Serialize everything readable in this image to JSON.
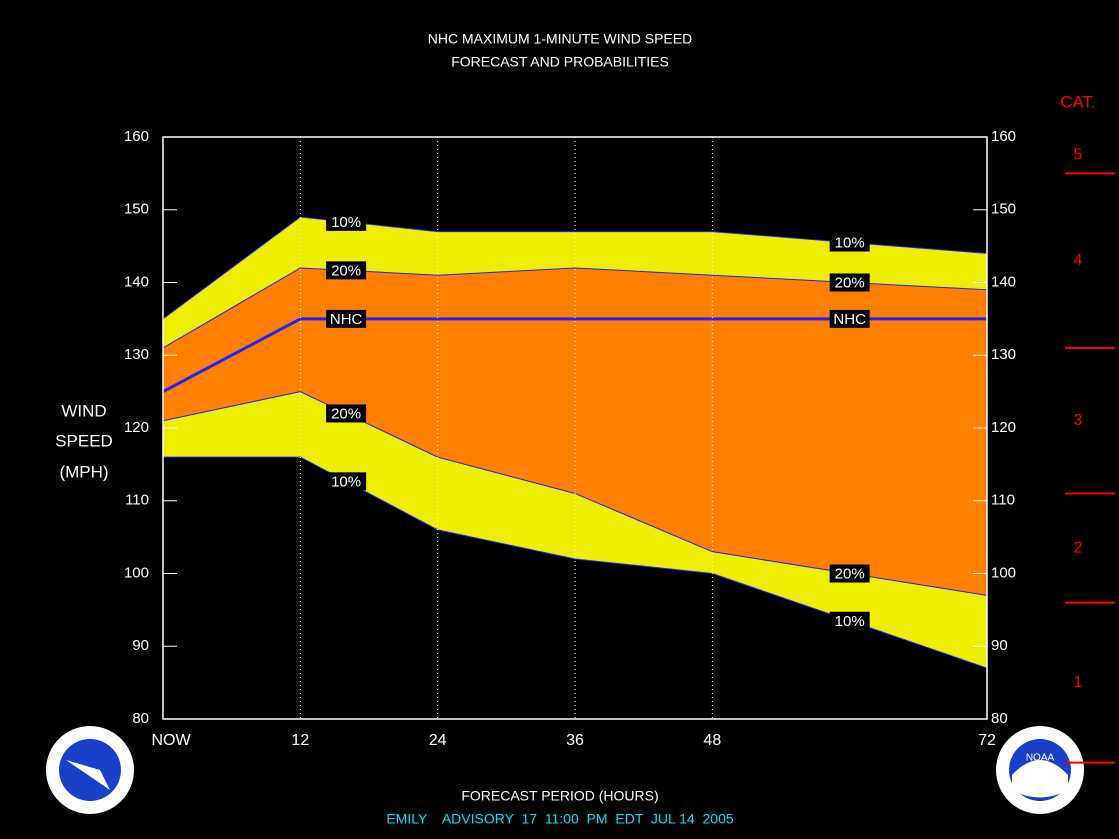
{
  "chart_data": {
    "type": "band",
    "title": [
      "NHC MAXIMUM 1-MINUTE WIND SPEED",
      "FORECAST AND PROBABILITIES"
    ],
    "y_label": [
      "WIND",
      "SPEED",
      "(MPH)"
    ],
    "x_label": "FORECAST PERIOD (HOURS)",
    "footer": "EMILY    ADVISORY  17  11:00  PM  EDT  JUL 14  2005",
    "x": [
      0,
      12,
      24,
      36,
      48,
      72
    ],
    "xlim": [
      0,
      72
    ],
    "xticks": [
      {
        "value": 0,
        "label": "NOW"
      },
      12,
      24,
      36,
      48,
      72
    ],
    "ylim": [
      80,
      160
    ],
    "yticks": [
      80,
      90,
      100,
      110,
      120,
      130,
      140,
      150,
      160
    ],
    "grid": true,
    "series": [
      {
        "name": "10%",
        "color": "#eeee00",
        "values": [
          135,
          149,
          147,
          147,
          147,
          144
        ],
        "low": [
          116,
          116,
          106,
          102,
          100,
          87
        ]
      },
      {
        "name": "20%",
        "color": "#ff8000",
        "values": [
          131,
          142,
          141,
          142,
          141,
          139
        ],
        "low": [
          121,
          125,
          116,
          111,
          103,
          97
        ]
      },
      {
        "name": "NHC",
        "color": "#2222ff",
        "values": [
          125,
          135,
          135,
          135,
          135,
          135
        ]
      }
    ],
    "category_scale": {
      "title": "CAT.",
      "bounds": [
        74,
        96,
        111,
        131,
        155
      ],
      "labels": [
        "1",
        "2",
        "3",
        "4",
        "5"
      ],
      "color": "#ff0000"
    },
    "logo_text": "NOAA"
  }
}
